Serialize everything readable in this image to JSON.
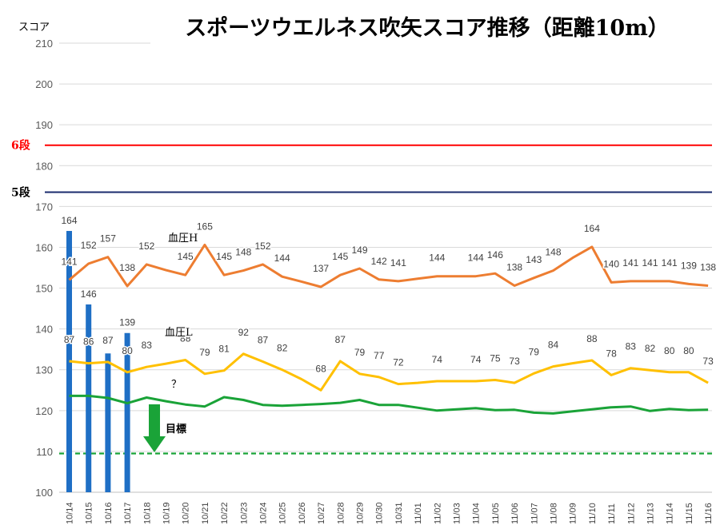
{
  "chart_data": {
    "type": "line",
    "title": "スポーツウエルネス吹矢スコア推移（距離10m）",
    "ylabel": "スコア",
    "ylim": [
      100,
      210
    ],
    "yticks": [
      100,
      110,
      120,
      130,
      140,
      150,
      160,
      170,
      180,
      190,
      200,
      210
    ],
    "categories": [
      "10/14",
      "10/15",
      "10/16",
      "10/17",
      "10/18",
      "10/19",
      "10/20",
      "10/21",
      "10/22",
      "10/23",
      "10/24",
      "10/25",
      "10/26",
      "10/27",
      "10/28",
      "10/29",
      "10/30",
      "10/31",
      "11/01",
      "11/02",
      "11/03",
      "11/04",
      "11/05",
      "11/06",
      "11/07",
      "11/08",
      "11/09",
      "11/10",
      "11/11",
      "11/12",
      "11/13",
      "11/14",
      "11/15",
      "11/16"
    ],
    "bars": {
      "values": [
        164,
        146,
        134,
        139
      ],
      "labels": [
        "164",
        "146",
        "",
        "139"
      ],
      "color": "#1f6fc5"
    },
    "series": [
      {
        "key": "bp_high",
        "label": "血圧H",
        "color": "#ed7d31",
        "values": [
          152,
          156,
          157.6,
          150.5,
          155.8,
          154.4,
          153.2,
          160.6,
          153.2,
          154.3,
          155.8,
          152.8,
          151.6,
          150.3,
          153.2,
          154.8,
          152.1,
          151.7,
          152.3,
          152.9,
          152.9,
          152.9,
          153.6,
          150.6,
          152.5,
          154.3,
          157.4,
          160.1,
          151.4,
          151.7,
          151.7,
          151.7,
          151,
          150.6
        ],
        "labels": [
          "141",
          "152",
          "157",
          "138",
          "152",
          "",
          "145",
          "165",
          "145",
          "148",
          "152",
          "144",
          "",
          "137",
          "145",
          "149",
          "142",
          "141",
          "",
          "144",
          "",
          "144",
          "146",
          "138",
          "143",
          "148",
          "",
          "164",
          "140",
          "141",
          "141",
          "141",
          "139",
          "138"
        ]
      },
      {
        "key": "bp_low",
        "label": "血圧L",
        "color": "#ffc000",
        "values": [
          132.1,
          131.6,
          131.9,
          129.4,
          130.7,
          131.5,
          132.4,
          129,
          129.8,
          133.9,
          132,
          130,
          127.7,
          125,
          132.1,
          129,
          128.2,
          126.5,
          126.8,
          127.2,
          127.2,
          127.2,
          127.5,
          126.8,
          129.1,
          130.8,
          131.6,
          132.3,
          128.7,
          130.4,
          129.9,
          129.4,
          129.4,
          126.8
        ],
        "labels": [
          "87",
          "86",
          "87",
          "80",
          "83",
          "",
          "88",
          "79",
          "81",
          "92",
          "87",
          "82",
          "",
          "68",
          "87",
          "79",
          "77",
          "72",
          "",
          "74",
          "",
          "74",
          "75",
          "73",
          "79",
          "84",
          "",
          "88",
          "78",
          "83",
          "82",
          "80",
          "80",
          "73"
        ]
      },
      {
        "key": "lowest",
        "color": "#1aa338",
        "values": [
          123.6,
          123.6,
          123.1,
          121.8,
          123.2,
          122.3,
          121.5,
          121,
          123.3,
          122.6,
          121.4,
          121.2,
          121.4,
          121.6,
          121.9,
          122.6,
          121.4,
          121.4,
          120.7,
          120,
          120.3,
          120.6,
          120.1,
          120.2,
          119.5,
          119.3,
          119.8,
          120.3,
          120.8,
          121,
          119.9,
          120.4,
          120.1,
          120.2
        ]
      }
    ],
    "reference_lines": [
      {
        "label": "6段",
        "value": 185,
        "color": "#ff0000"
      },
      {
        "label": "5段",
        "value": 173.5,
        "color": "#1a2a6c"
      },
      {
        "label": "目標",
        "value": 109.5,
        "color": "#1aa338",
        "dashed": true
      }
    ],
    "annotations": {
      "question": "？",
      "target_label": "目標"
    },
    "grid": true,
    "legend": "none"
  }
}
